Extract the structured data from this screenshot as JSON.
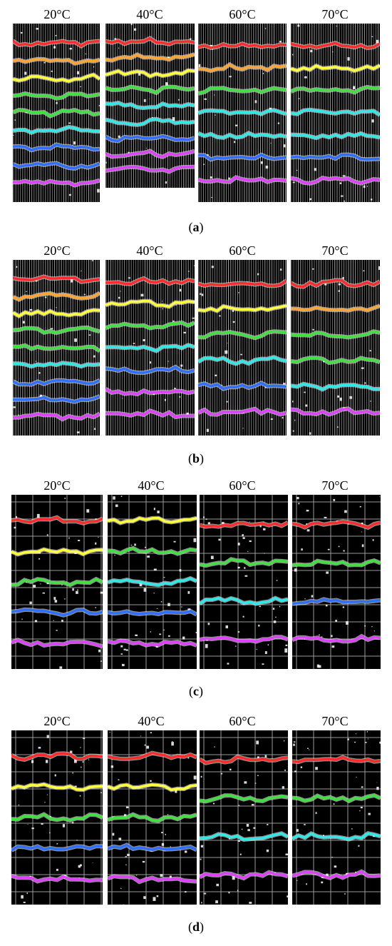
{
  "colors": {
    "background": "#000000",
    "grid_dense": "#cfcfcf",
    "grid_coarse": "#9a9a9a",
    "red": "#ff2a2a",
    "orange": "#ffa534",
    "yellow": "#ffff3a",
    "green": "#40e040",
    "cyan": "#30e8e8",
    "blue": "#2f6fff",
    "magenta": "#e040ff"
  },
  "rows": [
    {
      "label_prefix": "(",
      "label_letter": "a",
      "label_suffix": ")",
      "style": "dense",
      "panels": [
        {
          "temperature": "20°C",
          "lines": [
            "red",
            "orange",
            "yellow",
            "green",
            "green",
            "cyan",
            "blue",
            "blue",
            "magenta"
          ]
        },
        {
          "temperature": "40°C",
          "lines": [
            "red",
            "orange",
            "yellow",
            "green",
            "cyan",
            "cyan",
            "blue",
            "magenta",
            "magenta"
          ]
        },
        {
          "temperature": "60°C",
          "lines": [
            "red",
            "orange",
            "green",
            "cyan",
            "cyan",
            "blue",
            "magenta"
          ]
        },
        {
          "temperature": "70°C",
          "lines": [
            "red",
            "yellow",
            "green",
            "cyan",
            "cyan",
            "blue",
            "magenta"
          ]
        }
      ]
    },
    {
      "label_prefix": "(",
      "label_letter": "b",
      "label_suffix": ")",
      "style": "dense",
      "panels": [
        {
          "temperature": "20°C",
          "lines": [
            "red",
            "orange",
            "yellow",
            "green",
            "green",
            "cyan",
            "blue",
            "blue",
            "magenta"
          ]
        },
        {
          "temperature": "40°C",
          "lines": [
            "red",
            "yellow",
            "green",
            "cyan",
            "blue",
            "magenta",
            "magenta"
          ]
        },
        {
          "temperature": "60°C",
          "lines": [
            "red",
            "yellow",
            "green",
            "cyan",
            "blue",
            "magenta"
          ]
        },
        {
          "temperature": "70°C",
          "lines": [
            "red",
            "orange",
            "green",
            "green",
            "cyan",
            "magenta"
          ]
        }
      ]
    },
    {
      "label_prefix": "(",
      "label_letter": "c",
      "label_suffix": ")",
      "style": "coarse",
      "panels": [
        {
          "temperature": "20°C",
          "lines": [
            "red",
            "yellow",
            "green",
            "blue",
            "magenta"
          ]
        },
        {
          "temperature": "40°C",
          "lines": [
            "yellow",
            "green",
            "cyan",
            "blue",
            "magenta"
          ]
        },
        {
          "temperature": "60°C",
          "lines": [
            "red",
            "green",
            "cyan",
            "magenta"
          ]
        },
        {
          "temperature": "70°C",
          "lines": [
            "red",
            "green",
            "blue",
            "magenta"
          ]
        }
      ]
    },
    {
      "label_prefix": "(",
      "label_letter": "d",
      "label_suffix": ")",
      "style": "coarse",
      "panels": [
        {
          "temperature": "20°C",
          "lines": [
            "red",
            "yellow",
            "green",
            "blue",
            "magenta"
          ]
        },
        {
          "temperature": "40°C",
          "lines": [
            "red",
            "yellow",
            "green",
            "blue",
            "magenta"
          ]
        },
        {
          "temperature": "60°C",
          "lines": [
            "red",
            "green",
            "cyan",
            "magenta"
          ]
        },
        {
          "temperature": "70°C",
          "lines": [
            "red",
            "green",
            "cyan",
            "magenta"
          ]
        }
      ]
    }
  ]
}
